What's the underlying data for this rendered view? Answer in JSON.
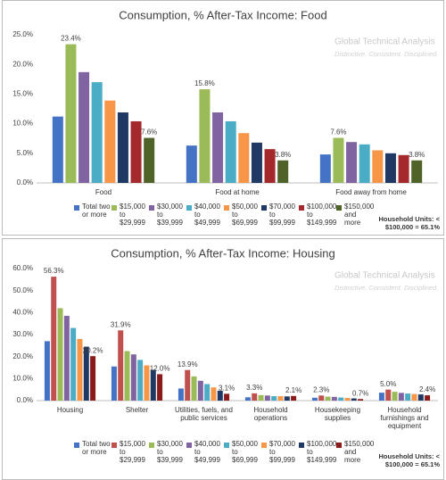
{
  "chart_data": [
    {
      "type": "bar",
      "title": "Consumption, % After-Tax Income: Food",
      "categories": [
        "Food",
        "Food at home",
        "Food away from home"
      ],
      "series": [
        {
          "name": "Total two or more",
          "color": "#4472c4",
          "values": [
            11.2,
            6.3,
            4.8
          ]
        },
        {
          "name": "$15,000 to $29,999",
          "color": "#9bbb59",
          "values": [
            23.4,
            15.8,
            7.6
          ],
          "value_labels": [
            "23.4%",
            "15.8%",
            "7.6%"
          ]
        },
        {
          "name": "$30,000 to $39,999",
          "color": "#8064a2",
          "values": [
            18.7,
            11.9,
            6.9
          ]
        },
        {
          "name": "$40,000 to $49,999",
          "color": "#4bacc6",
          "values": [
            17.0,
            10.4,
            6.5
          ]
        },
        {
          "name": "$50,000 to $69,999",
          "color": "#f79646",
          "values": [
            13.9,
            8.4,
            5.5
          ]
        },
        {
          "name": "$70,000 to $99,999",
          "color": "#1f3864",
          "values": [
            11.9,
            6.8,
            5.0
          ]
        },
        {
          "name": "$100,000 to $149,999",
          "color": "#a5282c",
          "values": [
            10.4,
            5.7,
            4.7
          ]
        },
        {
          "name": "$150,000 and more",
          "color": "#4f6228",
          "values": [
            7.6,
            3.8,
            3.8
          ],
          "value_labels": [
            "7.6%",
            "3.8%",
            "3.8%"
          ]
        }
      ],
      "ylim": [
        0,
        25
      ],
      "yticks": [
        {
          "value": 0,
          "label": "0.0%"
        },
        {
          "value": 5,
          "label": "5.0%"
        },
        {
          "value": 10,
          "label": "10.0%"
        },
        {
          "value": 15,
          "label": "15.0%"
        },
        {
          "value": 20,
          "label": "20.0%"
        },
        {
          "value": 25,
          "label": "25.0%"
        }
      ],
      "grid": false,
      "annotation": "Household Units: < $100,000 = 65.1%",
      "watermark": {
        "title": "Global Technical Analysis",
        "tagline": "Distinctive. Consistent. Disciplined."
      }
    },
    {
      "type": "bar",
      "title": "Consumption, % After-Tax Income: Housing",
      "categories": [
        "Housing",
        "Shelter",
        "Utilities, fuels, and public services",
        "Household operations",
        "Housekeeping supplies",
        "Household furnishings and equipment"
      ],
      "series": [
        {
          "name": "Total two or more",
          "color": "#4472c4",
          "values": [
            27.0,
            15.5,
            5.5,
            1.5,
            1.3,
            3.6
          ]
        },
        {
          "name": "$15,000 to $29,999",
          "color": "#c0504d",
          "values": [
            56.3,
            31.9,
            13.9,
            3.3,
            2.3,
            5.0
          ],
          "value_labels": [
            "56.3%",
            "31.9%",
            "13.9%",
            "3.3%",
            "2.3%",
            "5.0%"
          ]
        },
        {
          "name": "$30,000 to $39,999",
          "color": "#9bbb59",
          "values": [
            42.0,
            22.5,
            11.0,
            2.5,
            1.8,
            4.0
          ]
        },
        {
          "name": "$40,000 to $49,999",
          "color": "#8064a2",
          "values": [
            38.5,
            21.0,
            9.0,
            2.3,
            1.7,
            3.5
          ]
        },
        {
          "name": "$50,000 to $69,999",
          "color": "#4bacc6",
          "values": [
            33.0,
            18.5,
            7.5,
            2.0,
            1.4,
            3.2
          ]
        },
        {
          "name": "$70,000 to $99,999",
          "color": "#f79646",
          "values": [
            28.0,
            16.0,
            6.0,
            2.0,
            1.2,
            3.0
          ]
        },
        {
          "name": "$100,000 to $149,999",
          "color": "#1f3864",
          "values": [
            24.5,
            14.0,
            4.5,
            1.9,
            1.0,
            2.8
          ]
        },
        {
          "name": "$150,000 and more",
          "color": "#8b1a1a",
          "values": [
            20.2,
            12.0,
            3.1,
            2.1,
            0.7,
            2.4
          ],
          "value_labels": [
            "20.2%",
            "12.0%",
            "3.1%",
            "2.1%",
            "0.7%",
            "2.4%"
          ]
        }
      ],
      "ylim": [
        0,
        60
      ],
      "yticks": [
        {
          "value": 0,
          "label": "0.0%"
        },
        {
          "value": 10,
          "label": "10.0%"
        },
        {
          "value": 20,
          "label": "20.0%"
        },
        {
          "value": 30,
          "label": "30.0%"
        },
        {
          "value": 40,
          "label": "40.0%"
        },
        {
          "value": 50,
          "label": "50.0%"
        },
        {
          "value": 60,
          "label": "60.0%"
        }
      ],
      "grid": false,
      "annotation": "Household Units: < $100,000 = 65.1%",
      "watermark": {
        "title": "Global Technical Analysis",
        "tagline": "Distinctive. Consistent. Disciplined."
      }
    }
  ]
}
